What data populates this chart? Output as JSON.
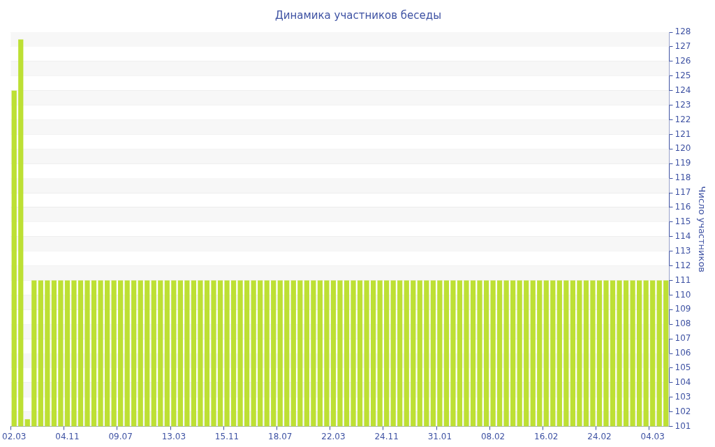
{
  "chart_data": {
    "type": "bar",
    "title": "Динамика участников беседы",
    "ylabel": "Число участников",
    "categories": [
      "02.03",
      null,
      null,
      null,
      null,
      null,
      null,
      null,
      "04.11",
      null,
      null,
      null,
      null,
      null,
      null,
      null,
      "09.07",
      null,
      null,
      null,
      null,
      null,
      null,
      null,
      "13.03",
      null,
      null,
      null,
      null,
      null,
      null,
      null,
      "15.11",
      null,
      null,
      null,
      null,
      null,
      null,
      null,
      "18.07",
      null,
      null,
      null,
      null,
      null,
      null,
      null,
      "22.03",
      null,
      null,
      null,
      null,
      null,
      null,
      null,
      "24.11",
      null,
      null,
      null,
      null,
      null,
      null,
      null,
      "31.01",
      null,
      null,
      null,
      null,
      null,
      null,
      null,
      "08.02",
      null,
      null,
      null,
      null,
      null,
      null,
      null,
      "16.02",
      null,
      null,
      null,
      null,
      null,
      null,
      null,
      "24.02",
      null,
      null,
      null,
      null,
      null,
      null,
      null,
      "04.03",
      null,
      null
    ],
    "values": [
      124,
      127.5,
      101.5,
      111,
      111,
      111,
      111,
      111,
      111,
      111,
      111,
      111,
      111,
      111,
      111,
      111,
      111,
      111,
      111,
      111,
      111,
      111,
      111,
      111,
      111,
      111,
      111,
      111,
      111,
      111,
      111,
      111,
      111,
      111,
      111,
      111,
      111,
      111,
      111,
      111,
      111,
      111,
      111,
      111,
      111,
      111,
      111,
      111,
      111,
      111,
      111,
      111,
      111,
      111,
      111,
      111,
      111,
      111,
      111,
      111,
      111,
      111,
      111,
      111,
      111,
      111,
      111,
      111,
      111,
      111,
      111,
      111,
      111,
      111,
      111,
      111,
      111,
      111,
      111,
      111,
      111,
      111,
      111,
      111,
      111,
      111,
      111,
      111,
      111,
      111,
      111,
      111,
      111,
      111,
      111,
      111,
      111,
      111,
      111
    ],
    "color": "#bde034",
    "ylim": [
      101,
      128
    ],
    "yticks": [
      101,
      102,
      103,
      104,
      105,
      106,
      107,
      108,
      109,
      110,
      111,
      112,
      113,
      114,
      115,
      116,
      117,
      118,
      119,
      120,
      121,
      122,
      123,
      124,
      125,
      126,
      127,
      128
    ],
    "grid": "y",
    "legend": false
  }
}
